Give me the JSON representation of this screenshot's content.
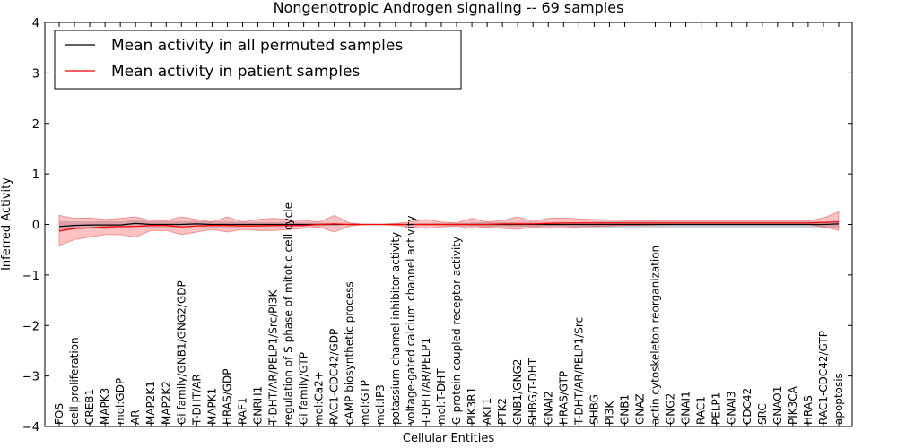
{
  "chart_data": {
    "type": "line",
    "title": "Nongenotropic Androgen signaling -- 69 samples",
    "xlabel": "Cellular Entities",
    "ylabel": "Inferred Activity",
    "ylim": [
      -4,
      4
    ],
    "yticks": [
      "−4",
      "−3",
      "−2",
      "−1",
      "0",
      "1",
      "2",
      "3",
      "4"
    ],
    "yticks_values": [
      -4,
      -3,
      -2,
      -1,
      0,
      1,
      2,
      3,
      4
    ],
    "legend_position": "top-left",
    "categories": [
      "FOS",
      "cell proliferation",
      "CREB1",
      "MAPK3",
      "mol:GDP",
      "AR",
      "MAP2K1",
      "MAP2K2",
      "Gi family/GNB1/GNG2/GDP",
      "T-DHT/AR",
      "MAPK1",
      "HRAS/GDP",
      "RAF1",
      "GNRH1",
      "T-DHT/AR/PELP1/Src/PI3K",
      "regulation of S phase of mitotic cell cycle",
      "Gi family/GTP",
      "mol:Ca2+",
      "RAC1-CDC42/GDP",
      "cAMP biosynthetic process",
      "mol:GTP",
      "mol:IP3",
      "potassium channel inhibitor activity",
      "voltage-gated calcium channel activity",
      "T-DHT/AR/PELP1",
      "mol:T-DHT",
      "G-protein coupled receptor activity",
      "PIK3R1",
      "AKT1",
      "PTK2",
      "GNB1/GNG2",
      "SHBG/T-DHT",
      "GNAI2",
      "HRAS/GTP",
      "T-DHT/AR/PELP1/Src",
      "SHBG",
      "PI3K",
      "GNB1",
      "GNAZ",
      "actin cytoskeleton reorganization",
      "GNG2",
      "GNAI1",
      "RAC1",
      "PELP1",
      "GNAI3",
      "CDC42",
      "SRC",
      "GNAO1",
      "PIK3CA",
      "HRAS",
      "RAC1-CDC42/GTP",
      "apoptosis"
    ],
    "series": [
      {
        "name": "Mean activity in all permuted samples",
        "color": "#000000",
        "values": [
          -0.04,
          -0.02,
          -0.01,
          -0.01,
          -0.01,
          0.02,
          0.0,
          0.0,
          0.0,
          0.01,
          0.0,
          0.0,
          0.0,
          0.0,
          0.0,
          0.0,
          0.0,
          0.0,
          0.0,
          0.0,
          0.0,
          0.0,
          0.0,
          0.0,
          0.0,
          0.0,
          0.0,
          0.0,
          0.0,
          0.0,
          0.0,
          0.0,
          0.0,
          0.0,
          0.0,
          0.0,
          0.0,
          0.0,
          0.0,
          0.0,
          0.0,
          0.0,
          0.0,
          0.0,
          0.0,
          0.0,
          0.0,
          0.0,
          0.0,
          0.0,
          0.0,
          0.01
        ],
        "lower": [
          -0.15,
          -0.1,
          -0.08,
          -0.09,
          -0.08,
          -0.05,
          -0.06,
          -0.07,
          -0.06,
          -0.05,
          -0.06,
          -0.06,
          -0.05,
          -0.05,
          -0.05,
          -0.05,
          -0.04,
          -0.03,
          -0.02,
          -0.01,
          0.0,
          0.0,
          0.0,
          -0.01,
          -0.02,
          -0.02,
          -0.02,
          -0.04,
          -0.05,
          -0.05,
          -0.05,
          -0.05,
          -0.05,
          -0.05,
          -0.05,
          -0.06,
          -0.06,
          -0.06,
          -0.06,
          -0.06,
          -0.06,
          -0.06,
          -0.06,
          -0.06,
          -0.06,
          -0.06,
          -0.06,
          -0.06,
          -0.06,
          -0.06,
          -0.06,
          -0.06
        ],
        "upper": [
          0.07,
          0.06,
          0.06,
          0.07,
          0.06,
          0.09,
          0.06,
          0.07,
          0.06,
          0.07,
          0.06,
          0.06,
          0.05,
          0.05,
          0.05,
          0.05,
          0.04,
          0.03,
          0.02,
          0.01,
          0.0,
          0.0,
          0.0,
          0.01,
          0.02,
          0.02,
          0.02,
          0.04,
          0.05,
          0.05,
          0.05,
          0.05,
          0.05,
          0.05,
          0.05,
          0.06,
          0.06,
          0.06,
          0.06,
          0.06,
          0.06,
          0.06,
          0.06,
          0.06,
          0.06,
          0.06,
          0.06,
          0.06,
          0.06,
          0.06,
          0.06,
          0.08
        ]
      },
      {
        "name": "Mean activity in patient samples",
        "color": "#ff0000",
        "values": [
          -0.13,
          -0.08,
          -0.07,
          -0.05,
          -0.04,
          -0.04,
          -0.02,
          -0.02,
          -0.05,
          -0.03,
          -0.02,
          -0.02,
          -0.03,
          -0.03,
          -0.02,
          -0.02,
          -0.02,
          0.0,
          0.01,
          0.0,
          0.0,
          0.0,
          0.0,
          0.0,
          0.0,
          0.0,
          0.0,
          0.0,
          0.0,
          0.01,
          0.01,
          0.01,
          0.02,
          0.03,
          0.03,
          0.03,
          0.03,
          0.03,
          0.03,
          0.03,
          0.03,
          0.03,
          0.03,
          0.03,
          0.03,
          0.03,
          0.03,
          0.03,
          0.03,
          0.03,
          0.04,
          0.05
        ],
        "lower": [
          -0.42,
          -0.3,
          -0.25,
          -0.2,
          -0.2,
          -0.25,
          -0.12,
          -0.12,
          -0.2,
          -0.15,
          -0.1,
          -0.15,
          -0.1,
          -0.12,
          -0.12,
          -0.1,
          -0.08,
          -0.05,
          -0.15,
          -0.03,
          0.0,
          0.0,
          -0.02,
          -0.05,
          -0.08,
          -0.05,
          -0.03,
          -0.08,
          -0.05,
          -0.08,
          -0.1,
          -0.05,
          -0.08,
          -0.07,
          -0.05,
          -0.04,
          -0.03,
          -0.02,
          -0.02,
          -0.01,
          0.0,
          0.0,
          0.0,
          0.0,
          0.0,
          0.0,
          0.0,
          0.0,
          0.0,
          0.0,
          -0.05,
          -0.12
        ],
        "upper": [
          0.18,
          0.12,
          0.13,
          0.1,
          0.12,
          0.15,
          0.08,
          0.08,
          0.15,
          0.1,
          0.05,
          0.15,
          0.05,
          0.1,
          0.12,
          0.1,
          0.08,
          0.05,
          0.18,
          0.03,
          0.0,
          0.0,
          0.02,
          0.05,
          0.1,
          0.05,
          0.03,
          0.12,
          0.05,
          0.08,
          0.15,
          0.06,
          0.12,
          0.13,
          0.11,
          0.1,
          0.09,
          0.08,
          0.08,
          0.07,
          0.07,
          0.07,
          0.07,
          0.07,
          0.07,
          0.07,
          0.07,
          0.07,
          0.07,
          0.07,
          0.13,
          0.25
        ]
      }
    ]
  }
}
